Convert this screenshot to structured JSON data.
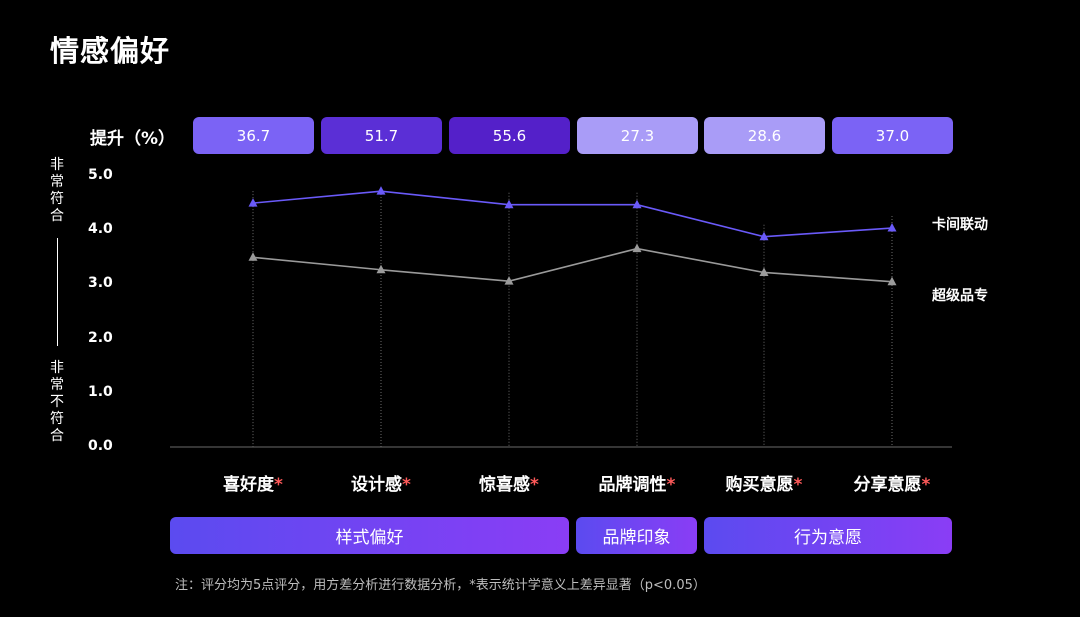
{
  "title": "情感偏好",
  "lift": {
    "label": "提升（%）",
    "values": [
      "36.7",
      "51.7",
      "55.6",
      "27.3",
      "28.6",
      "37.0"
    ],
    "colors": [
      "#7b63f5",
      "#5b2fd6",
      "#5420c9",
      "#a99cf7",
      "#a99cf7",
      "#7b63f5"
    ]
  },
  "yaxis": {
    "top_label": "非常符合",
    "bottom_label": "非常不符合"
  },
  "groups": [
    {
      "label": "样式偏好"
    },
    {
      "label": "品牌印象"
    },
    {
      "label": "行为意愿"
    }
  ],
  "note": "注：评分均为5点评分，用方差分析进行数据分析，*表示统计学意义上差异显著（p<0.05）",
  "chart_data": {
    "type": "line",
    "categories": [
      "喜好度",
      "设计感",
      "惊喜感",
      "品牌调性",
      "购买意愿",
      "分享意愿"
    ],
    "category_marks": [
      "*",
      "*",
      "*",
      "*",
      "*",
      "*"
    ],
    "y_ticks": [
      "5.0",
      "4.0",
      "3.0",
      "2.0",
      "1.0",
      "0.0"
    ],
    "ylim": [
      0,
      5
    ],
    "series": [
      {
        "name": "卡间联动",
        "values": [
          4.5,
          4.72,
          4.47,
          4.47,
          3.88,
          4.04
        ],
        "color": "#6a5af9"
      },
      {
        "name": "超级品专",
        "values": [
          3.5,
          3.27,
          3.06,
          3.66,
          3.22,
          3.05
        ],
        "color": "#9a9a9a"
      }
    ]
  }
}
